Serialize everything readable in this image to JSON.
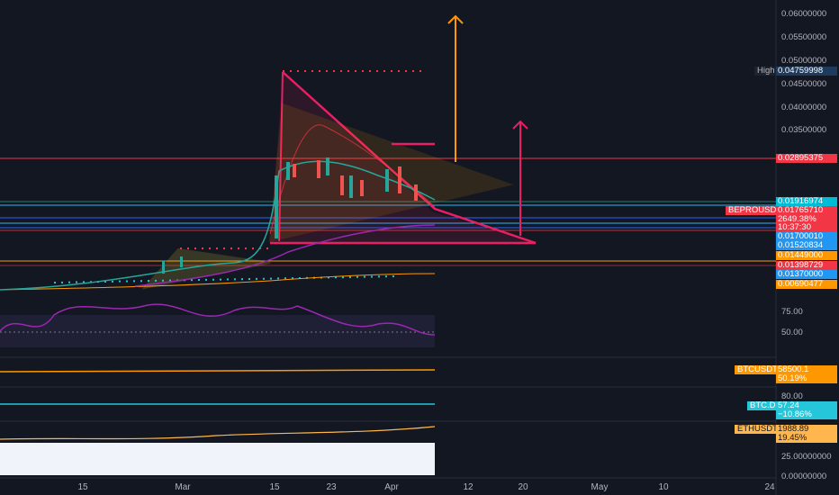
{
  "price_axis": {
    "ticks": [
      "0.06000000",
      "0.05500000",
      "0.05000000",
      "0.04500000",
      "0.04000000",
      "0.03500000"
    ],
    "high": {
      "label": "High",
      "value": "0.04759998"
    },
    "levels": [
      "0.02895375",
      "0.01916974",
      "0.01700010",
      "0.01520834",
      "0.01449000",
      "0.01398729",
      "0.01370000",
      "0.00690477"
    ],
    "symbol": {
      "name": "BEPROUSDT",
      "price": "0.01765710",
      "change": "2649.38%",
      "countdown": "10:37:30"
    }
  },
  "rsi": {
    "ticks": [
      "75.00",
      "50.00"
    ]
  },
  "btc": {
    "name": "BTCUSDT",
    "price": "58500.1",
    "change": "50.19%"
  },
  "btcd": {
    "tick": "80.00",
    "name": "BTC.D",
    "price": "57.24",
    "change": "−10.86%"
  },
  "eth": {
    "name": "ETHUSDT",
    "price": "1988.89",
    "change": "19.45%"
  },
  "volume": {
    "ticks": [
      "25.00000000",
      "0.00000000"
    ]
  },
  "time_axis": [
    "15",
    "Mar",
    "15",
    "23",
    "Apr",
    "12",
    "20",
    "May",
    "10",
    "24"
  ]
}
